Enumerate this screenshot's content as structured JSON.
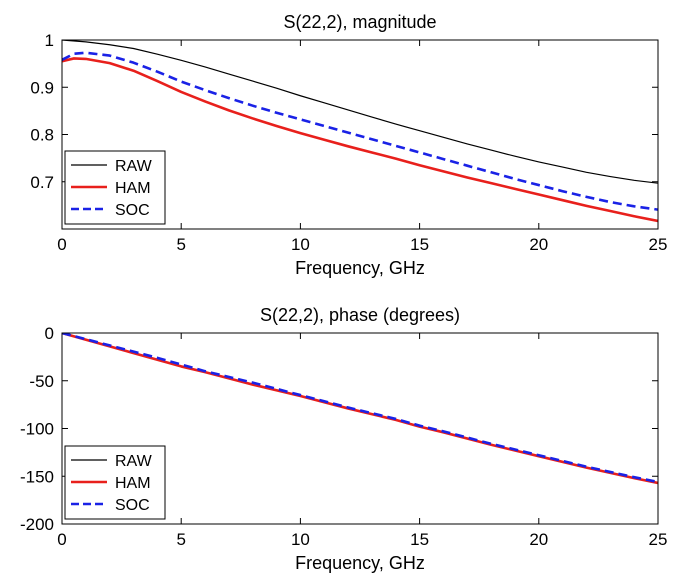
{
  "chart_data": [
    {
      "type": "line",
      "title": "S(22,2), magnitude",
      "xlabel": "Frequency, GHz",
      "ylabel": "",
      "xlim": [
        0,
        25
      ],
      "ylim": [
        0.6,
        1.0
      ],
      "xticks": [
        0,
        5,
        10,
        15,
        20,
        25
      ],
      "xtick_labels": [
        "0",
        "5",
        "10",
        "15",
        "20",
        "25"
      ],
      "yticks": [
        0.7,
        0.8,
        0.9,
        1.0
      ],
      "ytick_labels": [
        "0.7",
        "0.8",
        "0.9",
        "1"
      ],
      "grid": false,
      "legend_position": "bottom-left",
      "series": [
        {
          "name": "RAW",
          "color": "#000000",
          "style": "solid",
          "x": [
            0,
            1,
            2,
            3,
            4,
            5,
            6,
            7,
            8,
            9,
            10,
            11,
            12,
            13,
            14,
            15,
            16,
            17,
            18,
            19,
            20,
            21,
            22,
            23,
            24,
            25
          ],
          "y": [
            1.0,
            0.996,
            0.99,
            0.982,
            0.97,
            0.957,
            0.943,
            0.928,
            0.913,
            0.898,
            0.882,
            0.867,
            0.852,
            0.837,
            0.822,
            0.808,
            0.794,
            0.78,
            0.767,
            0.754,
            0.742,
            0.731,
            0.72,
            0.711,
            0.703,
            0.697
          ]
        },
        {
          "name": "HAM",
          "color": "#e8201c",
          "style": "solid",
          "x": [
            0,
            0.5,
            1,
            2,
            3,
            4,
            5,
            6,
            7,
            8,
            9,
            10,
            11,
            12,
            13,
            14,
            15,
            16,
            17,
            18,
            19,
            20,
            21,
            22,
            23,
            24,
            25
          ],
          "y": [
            0.955,
            0.961,
            0.96,
            0.951,
            0.935,
            0.913,
            0.89,
            0.87,
            0.851,
            0.834,
            0.818,
            0.803,
            0.789,
            0.775,
            0.762,
            0.749,
            0.735,
            0.722,
            0.709,
            0.697,
            0.685,
            0.673,
            0.661,
            0.649,
            0.638,
            0.627,
            0.617
          ]
        },
        {
          "name": "SOC",
          "color": "#1a22e6",
          "style": "dashed",
          "x": [
            0,
            0.5,
            1,
            2,
            3,
            4,
            5,
            6,
            7,
            8,
            9,
            10,
            11,
            12,
            13,
            14,
            15,
            16,
            17,
            18,
            19,
            20,
            21,
            22,
            23,
            24,
            25
          ],
          "y": [
            0.958,
            0.971,
            0.973,
            0.967,
            0.952,
            0.933,
            0.912,
            0.894,
            0.877,
            0.861,
            0.846,
            0.832,
            0.818,
            0.804,
            0.79,
            0.776,
            0.762,
            0.748,
            0.734,
            0.72,
            0.706,
            0.693,
            0.68,
            0.668,
            0.657,
            0.648,
            0.641
          ]
        }
      ]
    },
    {
      "type": "line",
      "title": "S(22,2), phase (degrees)",
      "xlabel": "Frequency, GHz",
      "ylabel": "",
      "xlim": [
        0,
        25
      ],
      "ylim": [
        -200,
        0
      ],
      "xticks": [
        0,
        5,
        10,
        15,
        20,
        25
      ],
      "xtick_labels": [
        "0",
        "5",
        "10",
        "15",
        "20",
        "25"
      ],
      "yticks": [
        -200,
        -150,
        -100,
        -50,
        0
      ],
      "ytick_labels": [
        "-200",
        "-150",
        "-100",
        "-50",
        "0"
      ],
      "grid": false,
      "legend_position": "bottom-left",
      "series": [
        {
          "name": "RAW",
          "color": "#000000",
          "style": "solid",
          "x": [
            0,
            2,
            4,
            5,
            6,
            8,
            10,
            12,
            14,
            15,
            16,
            18,
            20,
            22,
            24,
            25
          ],
          "y": [
            0,
            -14,
            -28,
            -35,
            -41,
            -54,
            -66,
            -79,
            -91,
            -98,
            -104,
            -117,
            -129,
            -141,
            -152,
            -157
          ]
        },
        {
          "name": "HAM",
          "color": "#e8201c",
          "style": "solid",
          "x": [
            0,
            2,
            4,
            5,
            6,
            8,
            10,
            12,
            14,
            15,
            16,
            18,
            20,
            22,
            24,
            25
          ],
          "y": [
            0,
            -14,
            -28,
            -35,
            -41,
            -54,
            -66,
            -79,
            -91,
            -98,
            -104,
            -117,
            -129,
            -141,
            -152,
            -157
          ]
        },
        {
          "name": "SOC",
          "color": "#1a22e6",
          "style": "dashed",
          "x": [
            0,
            2,
            4,
            5,
            6,
            8,
            10,
            12,
            14,
            15,
            16,
            18,
            20,
            22,
            24,
            25
          ],
          "y": [
            0,
            -13,
            -26,
            -33,
            -40,
            -52,
            -65,
            -78,
            -90,
            -97,
            -103,
            -116,
            -128,
            -140,
            -151,
            -156
          ]
        }
      ]
    }
  ]
}
